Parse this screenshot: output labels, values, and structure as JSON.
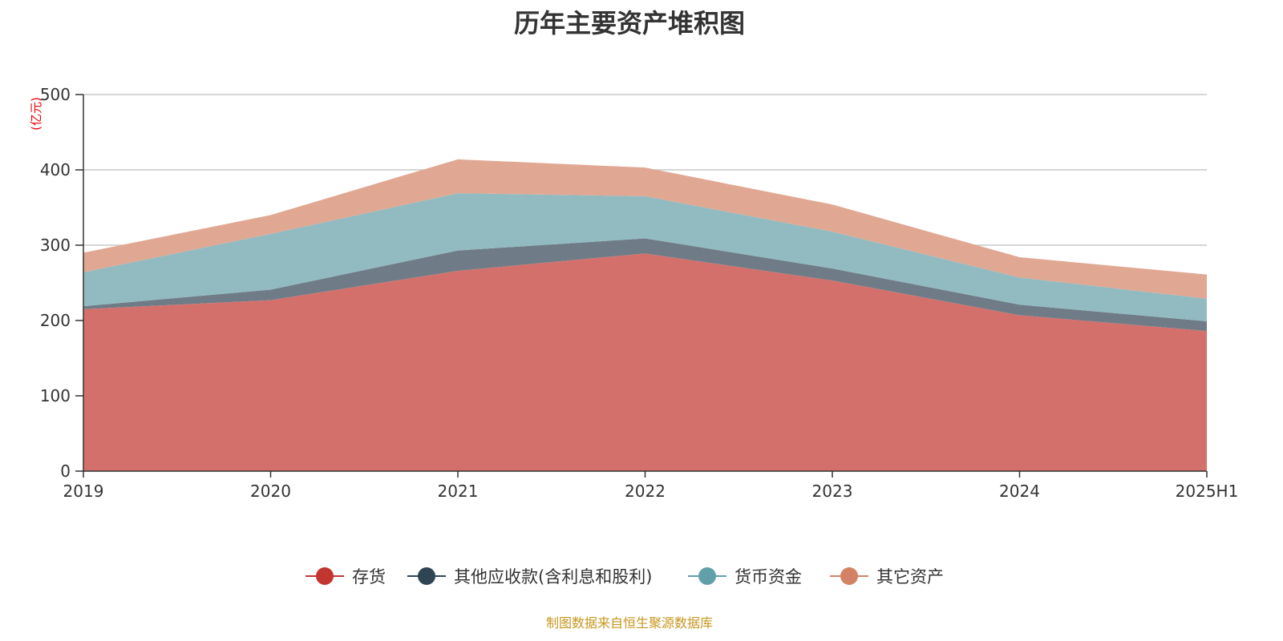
{
  "chart_data": {
    "type": "area",
    "stacked": true,
    "title": "历年主要资产堆积图",
    "ylabel": "(亿元)",
    "xlabel": "",
    "categories": [
      "2019",
      "2020",
      "2021",
      "2022",
      "2023",
      "2024",
      "2025H1"
    ],
    "ylim": [
      0,
      500
    ],
    "yticks": [
      0,
      100,
      200,
      300,
      400,
      500
    ],
    "grid": true,
    "legend_position": "bottom",
    "series": [
      {
        "name": "存货",
        "color": "#c23531",
        "fill": "#d4706c",
        "values": [
          215,
          227,
          266,
          289,
          253,
          207,
          186
        ]
      },
      {
        "name": "其他应收款(含利息和股利)",
        "color": "#2f4554",
        "fill": "#6f7c87",
        "values": [
          4,
          14,
          27,
          20,
          16,
          14,
          13
        ]
      },
      {
        "name": "货币资金",
        "color": "#61a0a8",
        "fill": "#92bbc1",
        "values": [
          45,
          74,
          76,
          56,
          49,
          36,
          30
        ]
      },
      {
        "name": "其它资产",
        "color": "#d48265",
        "fill": "#e0a893",
        "values": [
          26,
          25,
          45,
          38,
          36,
          27,
          32
        ]
      }
    ]
  },
  "source": "制图数据来自恒生聚源数据库"
}
